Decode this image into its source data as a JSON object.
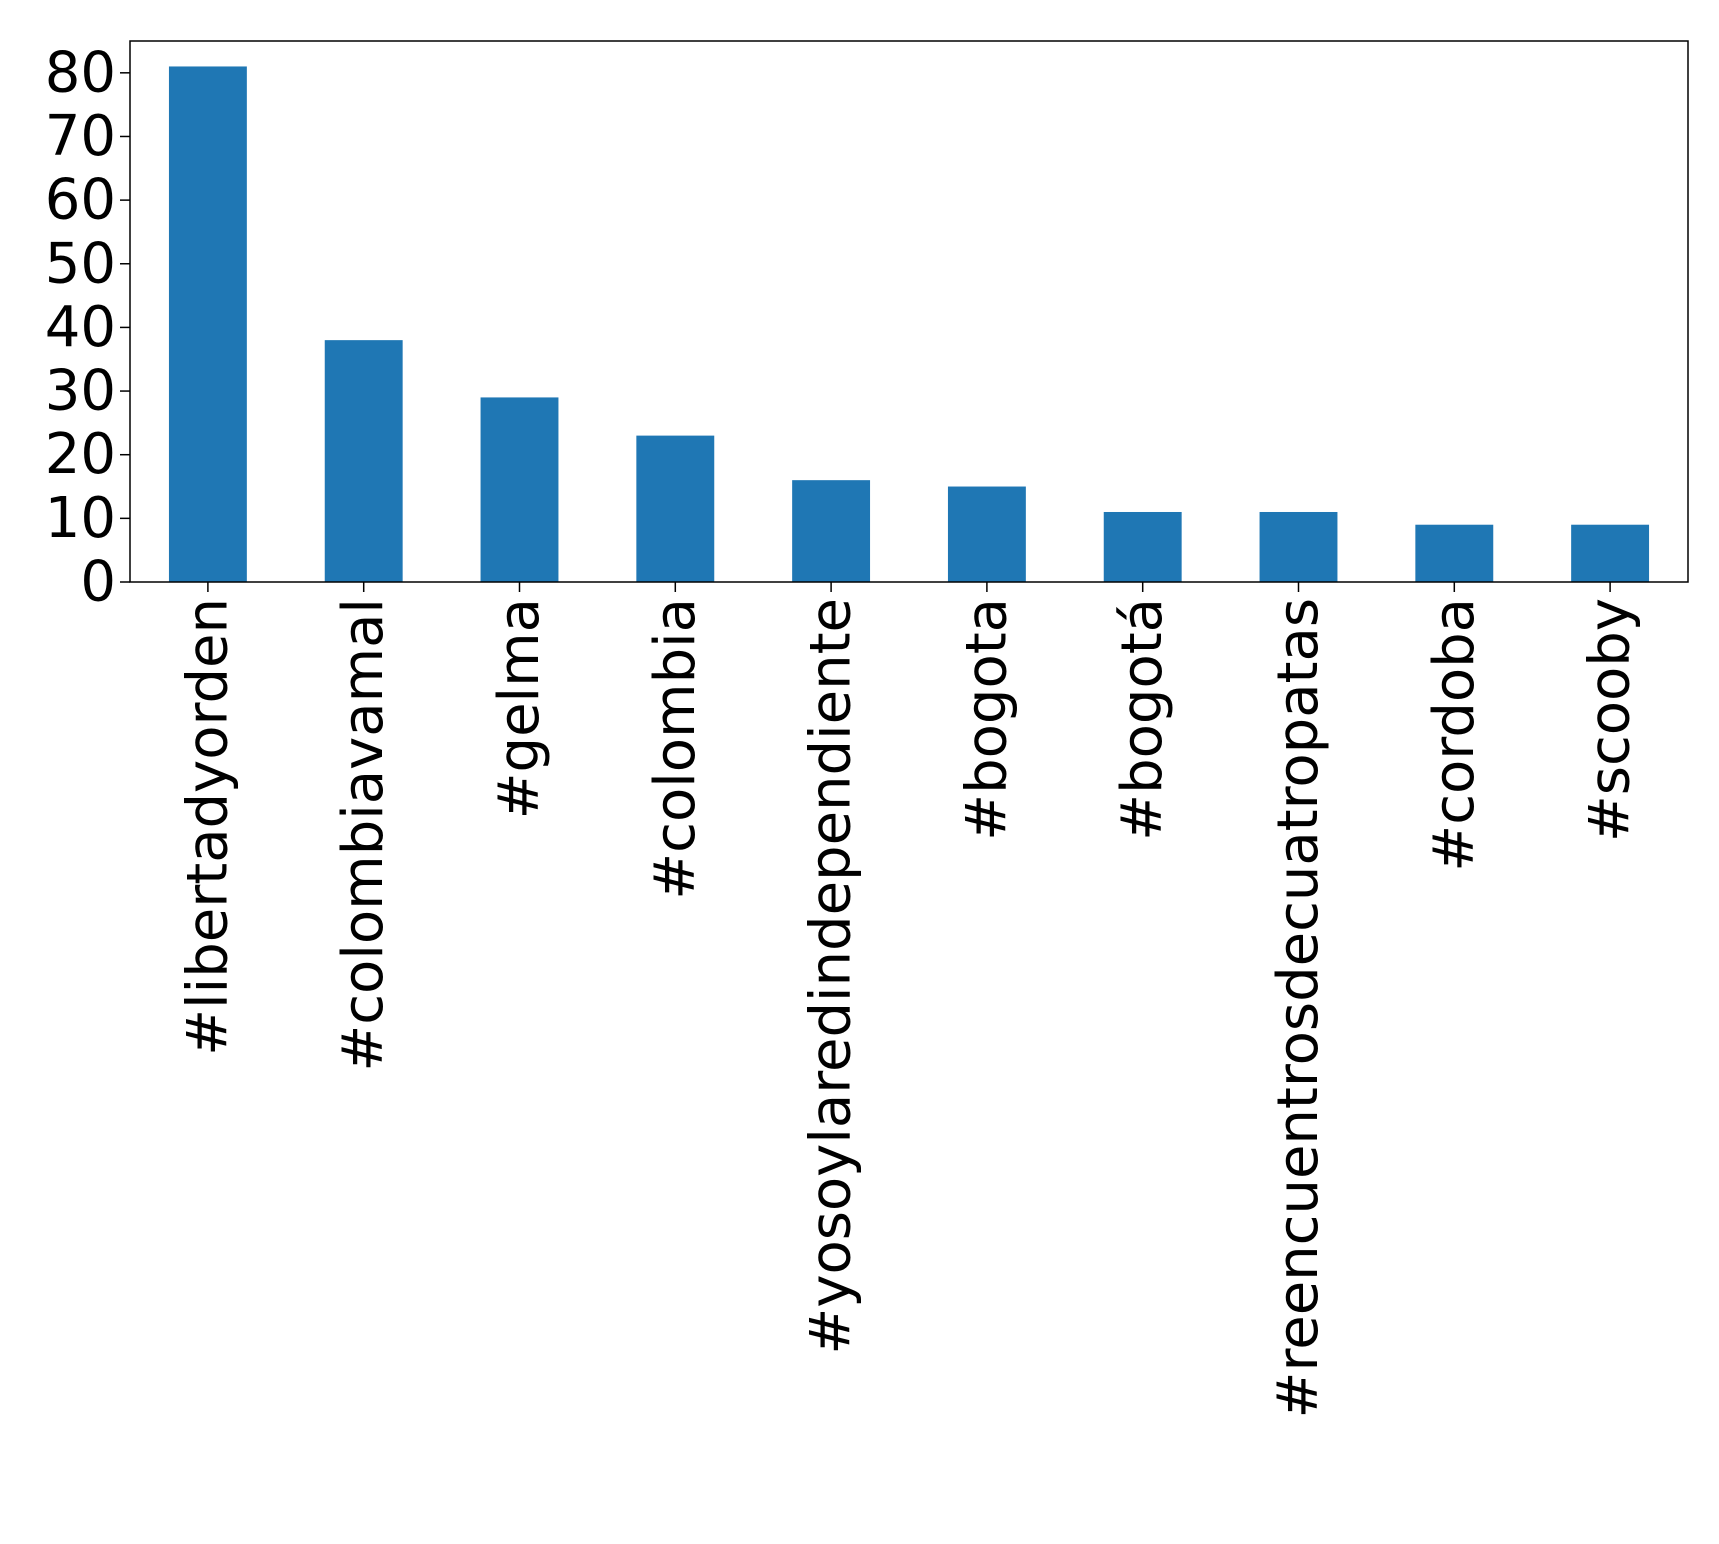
{
  "chart_data": {
    "type": "bar",
    "categories": [
      "#libertadyorden",
      "#colombiavamal",
      "#gelma",
      "#colombia",
      "#yosoylaredindependiente",
      "#bogota",
      "#bogotá",
      "#reencuentrosdecuatropatas",
      "#cordoba",
      "#scooby"
    ],
    "values": [
      81,
      38,
      29,
      23,
      16,
      15,
      11,
      11,
      9,
      9
    ],
    "title": "",
    "xlabel": "",
    "ylabel": "",
    "ylim": [
      0,
      85
    ],
    "yticks": [
      0,
      10,
      20,
      30,
      40,
      50,
      60,
      70,
      80
    ],
    "grid": false,
    "legend": "none",
    "bar_color": "#1f77b4"
  }
}
